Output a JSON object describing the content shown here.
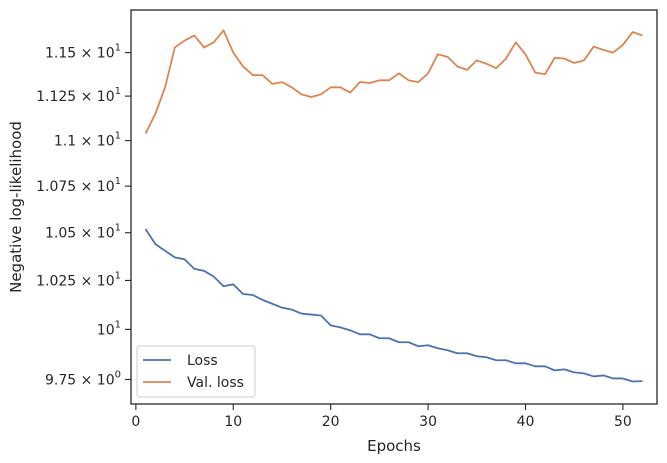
{
  "chart_data": {
    "type": "line",
    "title": "",
    "xlabel": "Epochs",
    "ylabel": "Negative log-likelihood",
    "xlim": [
      -0.5,
      53.5
    ],
    "ylim": [
      9.63,
      11.75
    ],
    "yscale": "log",
    "grid": false,
    "legend_position": "lower-left",
    "x_ticks": [
      0,
      10,
      20,
      30,
      40,
      50
    ],
    "x_tick_labels": [
      "0",
      "10",
      "20",
      "30",
      "40",
      "50"
    ],
    "y_ticks": [
      9.75,
      10.0,
      10.25,
      10.5,
      10.75,
      11.0,
      11.25,
      11.5
    ],
    "y_tick_labels": [
      {
        "mantissa": "9.75",
        "exp": "0"
      },
      {
        "mantissa": "",
        "exp": "1"
      },
      {
        "mantissa": "1.025",
        "exp": "1"
      },
      {
        "mantissa": "1.05",
        "exp": "1"
      },
      {
        "mantissa": "1.075",
        "exp": "1"
      },
      {
        "mantissa": "1.1",
        "exp": "1"
      },
      {
        "mantissa": "1.125",
        "exp": "1"
      },
      {
        "mantissa": "1.15",
        "exp": "1"
      }
    ],
    "x": [
      1,
      2,
      3,
      4,
      5,
      6,
      7,
      8,
      9,
      10,
      11,
      12,
      13,
      14,
      15,
      16,
      17,
      18,
      19,
      20,
      21,
      22,
      23,
      24,
      25,
      26,
      27,
      28,
      29,
      30,
      31,
      32,
      33,
      34,
      35,
      36,
      37,
      38,
      39,
      40,
      41,
      42,
      43,
      44,
      45,
      46,
      47,
      48,
      49,
      50,
      51,
      52
    ],
    "series": [
      {
        "name": "Loss",
        "color": "#4c72b0",
        "values": [
          10.52,
          10.44,
          10.405,
          10.37,
          10.36,
          10.31,
          10.3,
          10.27,
          10.22,
          10.23,
          10.18,
          10.175,
          10.15,
          10.13,
          10.11,
          10.1,
          10.08,
          10.075,
          10.07,
          10.02,
          10.01,
          9.995,
          9.975,
          9.975,
          9.955,
          9.955,
          9.935,
          9.935,
          9.915,
          9.92,
          9.905,
          9.895,
          9.88,
          9.88,
          9.865,
          9.86,
          9.845,
          9.845,
          9.83,
          9.83,
          9.815,
          9.815,
          9.795,
          9.8,
          9.785,
          9.78,
          9.765,
          9.77,
          9.755,
          9.755,
          9.74,
          9.742
        ]
      },
      {
        "name": "Val. loss",
        "color": "#dd8452",
        "values": [
          11.04,
          11.15,
          11.3,
          11.53,
          11.57,
          11.6,
          11.53,
          11.56,
          11.63,
          11.5,
          11.42,
          11.37,
          11.37,
          11.32,
          11.33,
          11.3,
          11.26,
          11.245,
          11.26,
          11.3,
          11.3,
          11.27,
          11.33,
          11.325,
          11.34,
          11.34,
          11.38,
          11.34,
          11.33,
          11.38,
          11.49,
          11.475,
          11.42,
          11.4,
          11.455,
          11.435,
          11.41,
          11.465,
          11.56,
          11.49,
          11.385,
          11.375,
          11.47,
          11.465,
          11.44,
          11.455,
          11.535,
          11.515,
          11.5,
          11.545,
          11.62,
          11.6
        ]
      }
    ]
  }
}
